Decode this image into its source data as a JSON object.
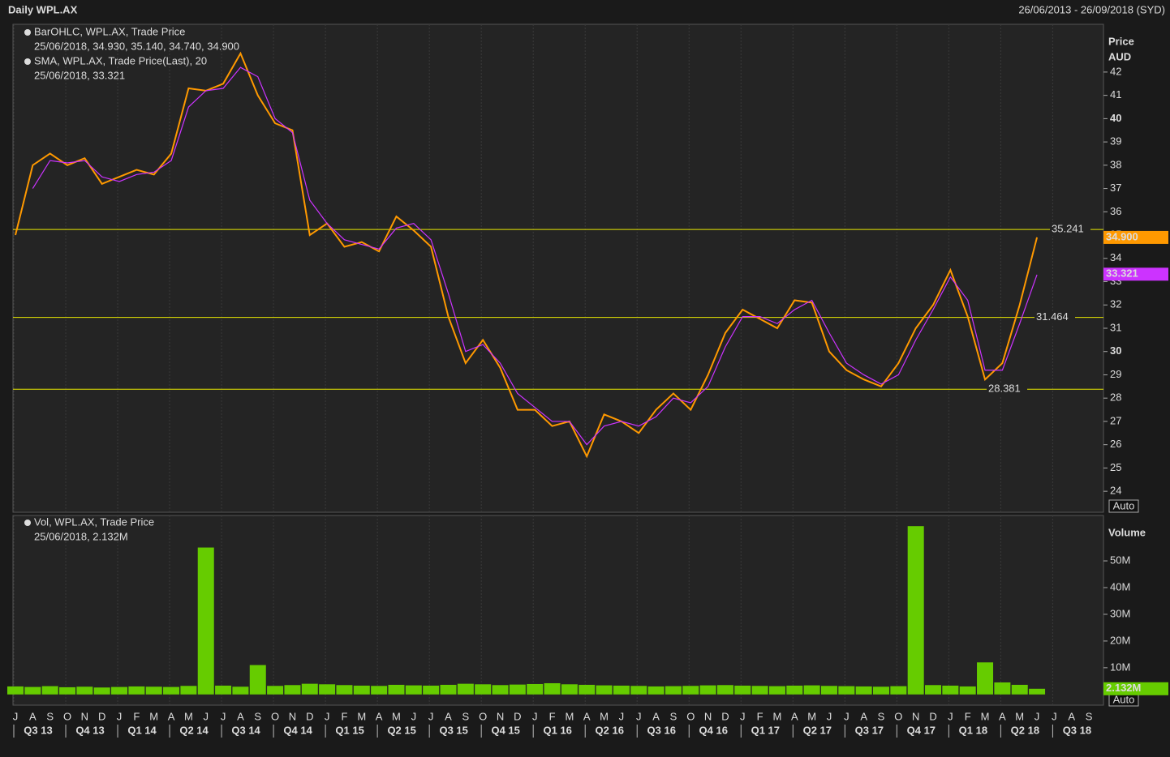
{
  "header": {
    "title": "Daily WPL.AX",
    "range": "26/06/2013 - 26/09/2018 (SYD)",
    "auto": "Auto"
  },
  "axis": {
    "months": [
      "J",
      "A",
      "S",
      "O",
      "N",
      "D",
      "J",
      "F",
      "M",
      "A",
      "M",
      "J",
      "J",
      "A",
      "S",
      "O",
      "N",
      "D",
      "J",
      "F",
      "M",
      "A",
      "M",
      "J",
      "J",
      "A",
      "S",
      "O",
      "N",
      "D",
      "J",
      "F",
      "M",
      "A",
      "M",
      "J",
      "J",
      "A",
      "S",
      "O",
      "N",
      "D",
      "J",
      "F",
      "M",
      "A",
      "M",
      "J",
      "J",
      "A",
      "S",
      "O",
      "N",
      "D",
      "J",
      "F",
      "M",
      "A",
      "M",
      "J",
      "J",
      "A",
      "S"
    ],
    "quarters": [
      "Q3 13",
      "Q4 13",
      "Q1 14",
      "Q2 14",
      "Q3 14",
      "Q4 14",
      "Q1 15",
      "Q2 15",
      "Q3 15",
      "Q4 15",
      "Q1 16",
      "Q2 16",
      "Q3 16",
      "Q4 16",
      "Q1 17",
      "Q2 17",
      "Q3 17",
      "Q4 17",
      "Q1 18",
      "Q2 18",
      "Q3 18"
    ]
  },
  "chart_data": [
    {
      "type": "line",
      "axis_title": [
        "Price",
        "AUD"
      ],
      "ylim": [
        23.1,
        44.05
      ],
      "yticks": [
        24,
        25,
        26,
        27,
        28,
        29,
        30,
        31,
        32,
        33,
        34,
        35,
        36,
        37,
        38,
        39,
        40,
        41,
        42
      ],
      "bold_ticks": [
        30,
        40
      ],
      "series": [
        {
          "name": "BarOHLC, WPL.AX, Trade Price",
          "detail": "25/06/2018, 34.930, 35.140, 34.740, 34.900",
          "color": "#ff9900",
          "values": [
            35,
            38,
            38.5,
            38,
            38.3,
            37.2,
            37.5,
            37.8,
            37.6,
            38.5,
            41.3,
            41.2,
            41.5,
            42.8,
            41,
            39.8,
            39.5,
            35,
            35.5,
            34.5,
            34.7,
            34.3,
            35.8,
            35.2,
            34.5,
            31.5,
            29.5,
            30.5,
            29.3,
            27.5,
            27.5,
            26.8,
            27,
            25.5,
            27.3,
            27,
            26.5,
            27.5,
            28.2,
            27.5,
            29,
            30.8,
            31.8,
            31.4,
            31,
            32.2,
            32.1,
            30,
            29.2,
            28.8,
            28.5,
            29.5,
            31,
            32,
            33.5,
            31.5,
            28.8,
            29.5,
            32,
            34.9,
            null,
            null,
            null
          ],
          "tag": {
            "value": 34.9,
            "label": "34.900"
          }
        },
        {
          "name": "SMA, WPL.AX, Trade Price(Last),  20",
          "detail": "25/06/2018, 33.321",
          "color": "#cc33ff",
          "values": [
            null,
            37,
            38.2,
            38.1,
            38.2,
            37.5,
            37.3,
            37.6,
            37.7,
            38.2,
            40.5,
            41.2,
            41.3,
            42.2,
            41.8,
            40,
            39.4,
            36.5,
            35.5,
            34.8,
            34.6,
            34.4,
            35.3,
            35.5,
            34.8,
            32.5,
            30,
            30.3,
            29.5,
            28.2,
            27.6,
            27,
            27,
            26,
            26.8,
            27,
            26.8,
            27.2,
            28,
            27.8,
            28.5,
            30.2,
            31.5,
            31.5,
            31.2,
            31.8,
            32.2,
            30.8,
            29.5,
            29,
            28.6,
            29,
            30.5,
            31.8,
            33.2,
            32.2,
            29.2,
            29.2,
            31.2,
            33.3,
            null,
            null,
            null
          ],
          "tag": {
            "value": 33.321,
            "label": "33.321"
          }
        }
      ],
      "levels": [
        {
          "value": 35.241,
          "label": "35.241"
        },
        {
          "value": 31.464,
          "label": "31.464"
        },
        {
          "value": 28.381,
          "label": "28.381"
        }
      ],
      "level_color": "#e8e800"
    },
    {
      "type": "bar",
      "axis_title": [
        "Volume"
      ],
      "ylim": [
        -4000000,
        67000000
      ],
      "yticks": [
        {
          "value": 10000000,
          "label": "10M"
        },
        {
          "value": 20000000,
          "label": "20M"
        },
        {
          "value": 30000000,
          "label": "30M"
        },
        {
          "value": 40000000,
          "label": "40M"
        },
        {
          "value": 50000000,
          "label": "50M"
        }
      ],
      "series": [
        {
          "name": "Vol, WPL.AX, Trade Price",
          "detail": "25/06/2018, 2.132M",
          "color": "#66cc00",
          "values": [
            3000000,
            2800000,
            3100000,
            2700000,
            2900000,
            2600000,
            2800000,
            3000000,
            2900000,
            2800000,
            3200000,
            55000000,
            3300000,
            2900000,
            11000000,
            3200000,
            3500000,
            4000000,
            3800000,
            3500000,
            3300000,
            3200000,
            3600000,
            3400000,
            3300000,
            3600000,
            4000000,
            3800000,
            3500000,
            3700000,
            3900000,
            4200000,
            3800000,
            3600000,
            3400000,
            3300000,
            3200000,
            3000000,
            3100000,
            3200000,
            3400000,
            3500000,
            3300000,
            3200000,
            3100000,
            3300000,
            3400000,
            3200000,
            3100000,
            3000000,
            2900000,
            3100000,
            63000000,
            3500000,
            3300000,
            3000000,
            12000000,
            4500000,
            3600000,
            2132000,
            null,
            null,
            null
          ],
          "tag": {
            "value": 2132000,
            "label": "2.132M"
          }
        }
      ]
    }
  ]
}
